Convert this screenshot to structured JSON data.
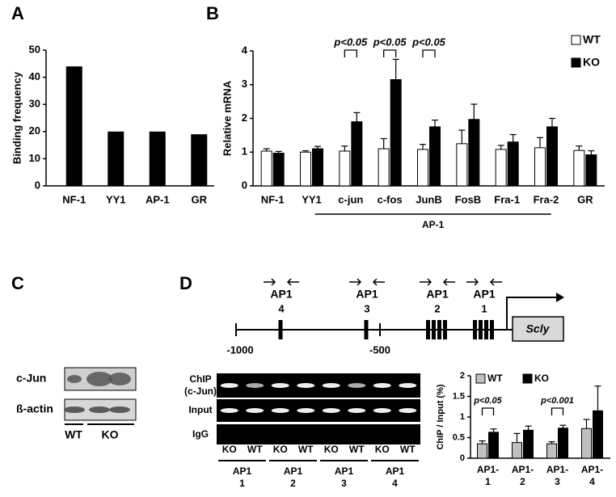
{
  "panel_labels": [
    "A",
    "B",
    "C",
    "D"
  ],
  "chart_data": [
    {
      "type": "bar",
      "ylabel": "Binding frequency",
      "categories": [
        "NF-1",
        "YY1",
        "AP-1",
        "GR"
      ],
      "values": [
        44,
        20,
        20,
        19
      ],
      "color": "#000000",
      "ylim": [
        0,
        50
      ],
      "yticks": [
        0,
        10,
        20,
        30,
        40,
        50
      ]
    },
    {
      "type": "grouped_bar",
      "ylabel": "Relative mRNA",
      "categories": [
        "NF-1",
        "YY1",
        "c-jun",
        "c-fos",
        "JunB",
        "FosB",
        "Fra-1",
        "Fra-2",
        "GR"
      ],
      "series": [
        {
          "name": "WT",
          "color": "#ffffff",
          "values": [
            1.03,
            1.0,
            1.03,
            1.1,
            1.08,
            1.25,
            1.08,
            1.13,
            1.05
          ],
          "errors": [
            0.07,
            0.04,
            0.15,
            0.3,
            0.15,
            0.4,
            0.12,
            0.3,
            0.13
          ]
        },
        {
          "name": "KO",
          "color": "#000000",
          "values": [
            0.97,
            1.1,
            1.9,
            3.15,
            1.75,
            1.97,
            1.3,
            1.75,
            0.92
          ],
          "errors": [
            0.05,
            0.07,
            0.27,
            0.6,
            0.2,
            0.45,
            0.22,
            0.25,
            0.12
          ]
        }
      ],
      "ylim": [
        0,
        4
      ],
      "yticks": [
        0,
        1,
        2,
        3,
        4
      ],
      "group_label": "AP-1",
      "annotations": [
        "p<0.05",
        "p<0.05",
        "p<0.05"
      ],
      "legend": "upper right"
    },
    {
      "type": "grouped_bar",
      "ylabel": "ChIP / Input (%)",
      "categories": [
        "AP1-\n1",
        "AP1-\n2",
        "AP1-\n3",
        "AP1-\n4"
      ],
      "series": [
        {
          "name": "WT",
          "color": "#c0c0c0",
          "values": [
            0.35,
            0.38,
            0.35,
            0.72
          ],
          "errors": [
            0.07,
            0.22,
            0.05,
            0.22
          ]
        },
        {
          "name": "KO",
          "color": "#000000",
          "values": [
            0.63,
            0.68,
            0.73,
            1.15
          ],
          "errors": [
            0.08,
            0.1,
            0.07,
            0.6
          ]
        }
      ],
      "ylim": [
        0,
        2
      ],
      "yticks": [
        0,
        0.5,
        1,
        1.5,
        2
      ],
      "annotations": [
        "p<0.05",
        "p<0.001"
      ],
      "legend": "top"
    }
  ],
  "gel_c": {
    "rows": [
      "c-Jun",
      "ß-actin"
    ],
    "lanes": [
      "WT",
      "KO"
    ]
  },
  "diagram_d": {
    "sites": [
      {
        "name": "AP1",
        "number": "4"
      },
      {
        "name": "AP1",
        "number": "3"
      },
      {
        "name": "AP1",
        "number": "2"
      },
      {
        "name": "AP1",
        "number": "1"
      }
    ],
    "positions": [
      "-1000",
      "-500"
    ],
    "gene": "Scly"
  },
  "gel_d": {
    "rows": [
      "ChIP\n(c-Jun)",
      "Input",
      "IgG"
    ],
    "lanes": [
      "KO",
      "WT",
      "KO",
      "WT",
      "KO",
      "WT",
      "KO",
      "WT"
    ],
    "groups": [
      "AP1\n1",
      "AP1\n2",
      "AP1\n3",
      "AP1\n4"
    ]
  }
}
